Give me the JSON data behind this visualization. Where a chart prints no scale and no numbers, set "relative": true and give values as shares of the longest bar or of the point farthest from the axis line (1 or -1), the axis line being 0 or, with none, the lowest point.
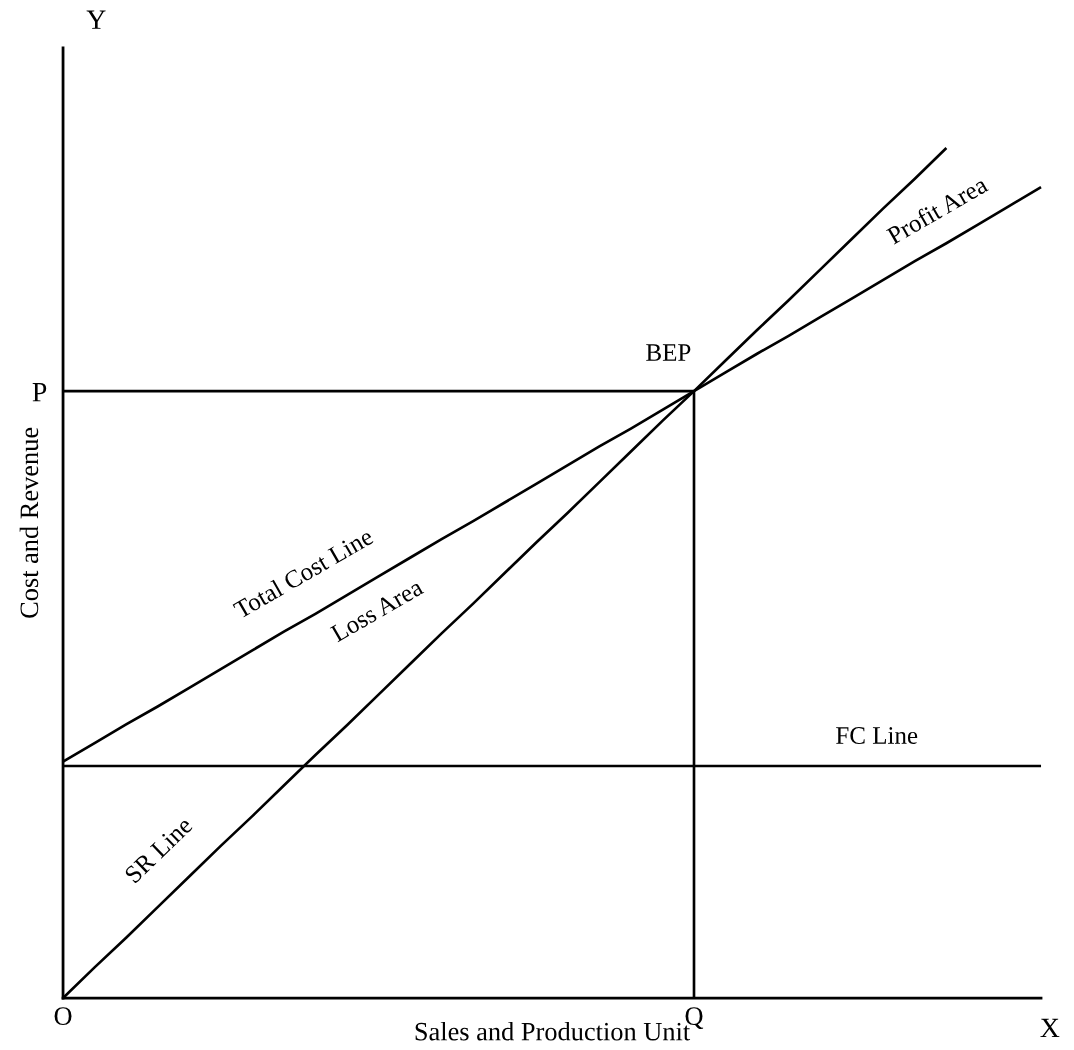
{
  "chart_data": {
    "type": "line",
    "relative": true,
    "xlabel": "Sales and Production Unit",
    "ylabel": "Cost and Revenue",
    "categories": [
      "O",
      null,
      null,
      null,
      null,
      null,
      null,
      null,
      null,
      null,
      null,
      null,
      null,
      null,
      null,
      null,
      null,
      null,
      null,
      null,
      "Q",
      null,
      null,
      null,
      null,
      null,
      null,
      null,
      null,
      null,
      null,
      null
    ],
    "grid": false,
    "legend": false,
    "marker": "none",
    "line_style": "solid",
    "series": [
      {
        "color": "#000000",
        "values": [
          0,
          0.036,
          0.071,
          0.107,
          0.143,
          0.179,
          0.214,
          0.25,
          0.286,
          0.321,
          0.357,
          0.393,
          0.429,
          0.464,
          0.5,
          0.536,
          0.571,
          0.607,
          0.643,
          0.679,
          0.714,
          0.75,
          0.786,
          0.821,
          0.857,
          0.893,
          0.929,
          0.964,
          1,
          null,
          null,
          null
        ]
      },
      {
        "color": "#000000",
        "values": [
          0.278,
          0.3,
          0.322,
          0.343,
          0.365,
          0.387,
          0.409,
          0.431,
          0.452,
          0.474,
          0.496,
          0.518,
          0.54,
          0.561,
          0.583,
          0.605,
          0.627,
          0.649,
          0.67,
          0.692,
          0.714,
          0.736,
          0.758,
          0.779,
          0.801,
          0.823,
          0.845,
          0.867,
          0.888,
          0.91,
          0.932,
          0.954
        ]
      },
      {
        "color": "#000000",
        "values": [
          0.273,
          0.273,
          0.273,
          0.273,
          0.273,
          0.273,
          0.273,
          0.273,
          0.273,
          0.273,
          0.273,
          0.273,
          0.273,
          0.273,
          0.273,
          0.273,
          0.273,
          0.273,
          0.273,
          0.273,
          0.273,
          0.273,
          0.273,
          0.273,
          0.273,
          0.273,
          0.273,
          0.273,
          0.273,
          0.273,
          0.273,
          0.273
        ]
      },
      {
        "color": "#000000",
        "values": [
          0.714,
          0.714,
          0.714,
          0.714,
          0.714,
          0.714,
          0.714,
          0.714,
          0.714,
          0.714,
          0.714,
          0.714,
          0.714,
          0.714,
          0.714,
          0.714,
          0.714,
          0.714,
          0.714,
          0.714,
          0.714,
          null,
          null,
          null,
          null,
          null,
          null,
          null,
          null,
          null,
          null,
          null
        ]
      },
      {
        "color": "#000000",
        "x": [
          "Q",
          "Q"
        ],
        "values": [
          0,
          0.714
        ]
      }
    ],
    "annotations": [
      "Total Cost Line",
      "Loss Area",
      "SR Line",
      "Profit Area",
      "FC Line",
      "BEP",
      "P",
      "X",
      "Y"
    ]
  }
}
